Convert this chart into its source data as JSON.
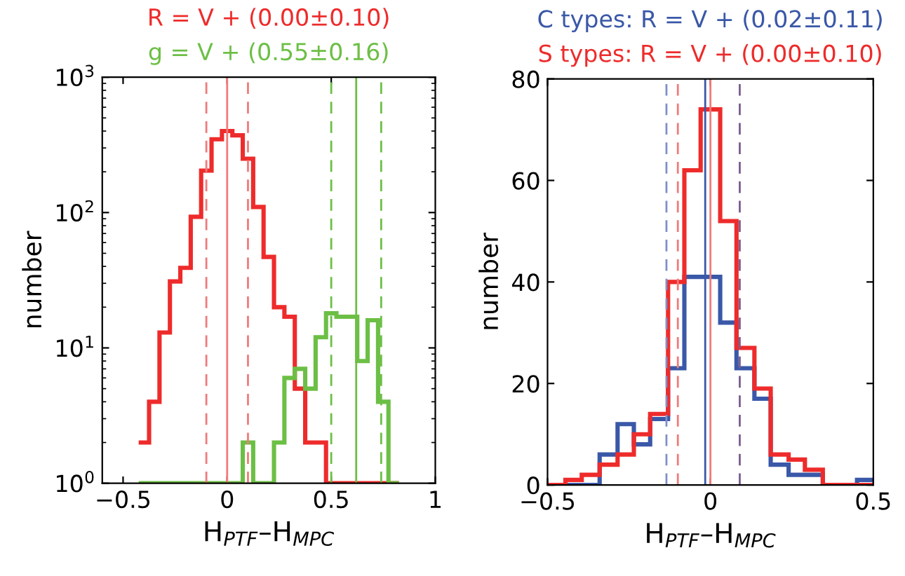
{
  "chart_data": [
    {
      "type": "histogram",
      "xlabel": "H$_{PTF}$–H$_{MPC}$",
      "ylabel": "number",
      "log": "y",
      "xlim": [
        -0.6,
        1
      ],
      "xticks": [
        {
          "value": -0.5,
          "label": "−0.5"
        },
        0,
        0.5,
        1
      ],
      "ylim": [
        1,
        1000
      ],
      "yticks": [
        {
          "value": 1,
          "label": "10$^{0}$"
        },
        {
          "value": 10,
          "label": "10$^{1}$"
        },
        {
          "value": 100,
          "label": "10$^{2}$"
        },
        {
          "value": 1000,
          "label": "10$^{3}$"
        }
      ],
      "bins": [
        -0.425,
        -0.375,
        -0.325,
        -0.275,
        -0.225,
        -0.175,
        -0.125,
        -0.075,
        -0.025,
        0.025,
        0.075,
        0.125,
        0.175,
        0.225,
        0.275,
        0.325,
        0.375,
        0.425,
        0.475,
        0.525,
        0.575,
        0.625,
        0.675,
        0.725,
        0.775,
        0.825
      ],
      "series": [
        {
          "name": "R = V + (0.00±0.10)",
          "color": "#ee2b2b",
          "values": [
            2,
            4,
            13,
            31,
            39,
            93,
            204,
            348,
            400,
            372,
            250,
            110,
            47,
            20,
            17,
            5,
            2,
            2,
            null,
            null,
            null,
            null,
            null,
            null,
            null
          ]
        },
        {
          "name": "g = V + (0.55±0.16)",
          "color": "#6cbf45",
          "values": [
            null,
            null,
            null,
            null,
            null,
            null,
            null,
            null,
            null,
            null,
            2,
            null,
            null,
            2,
            6,
            7,
            5,
            12,
            18,
            17,
            17,
            8,
            16,
            4,
            1
          ]
        }
      ],
      "ref_lines": [
        {
          "axis": "x",
          "value": 0,
          "color": "#f07a7a",
          "line_style": "solid"
        },
        {
          "axis": "x",
          "value": -0.1,
          "color": "#f07a7a",
          "line_style": "dashed"
        },
        {
          "axis": "x",
          "value": 0.1,
          "color": "#f07a7a",
          "line_style": "dashed"
        },
        {
          "axis": "x",
          "value": 0.62,
          "color": "#6cbf45",
          "line_style": "solid"
        },
        {
          "axis": "x",
          "value": 0.5,
          "color": "#6cbf45",
          "line_style": "dashed"
        },
        {
          "axis": "x",
          "value": 0.74,
          "color": "#6cbf45",
          "line_style": "dashed"
        }
      ]
    },
    {
      "type": "histogram",
      "xlabel": "H$_{PTF}$–H$_{MPC}$",
      "ylabel": "number",
      "xlim": [
        -0.5,
        0.5
      ],
      "xticks": [
        {
          "value": -0.5,
          "label": "−0.5"
        },
        0,
        0.5
      ],
      "ylim": [
        0,
        80
      ],
      "yticks": [
        0,
        20,
        40,
        60,
        80
      ],
      "bins": [
        -0.5,
        -0.445,
        -0.395,
        -0.34,
        -0.285,
        -0.235,
        -0.185,
        -0.13,
        -0.08,
        -0.03,
        0.03,
        0.08,
        0.135,
        0.185,
        0.24,
        0.29,
        0.345,
        0.395,
        0.45,
        0.5
      ],
      "series": [
        {
          "name": "C types: R = V + (0.02±0.11)",
          "color": "#3a58a8",
          "values": [
            0,
            0,
            0,
            6,
            12,
            8,
            13,
            23,
            41,
            41,
            32,
            23,
            17,
            4,
            2,
            2,
            0,
            0,
            1
          ]
        },
        {
          "name": "S types: R = V + (0.00±0.10)",
          "color": "#ee2b2b",
          "values": [
            0,
            1,
            2,
            4,
            6,
            10,
            14,
            40,
            62,
            74,
            52,
            27,
            19,
            6,
            5,
            3,
            0,
            0,
            0
          ]
        }
      ],
      "ref_lines": [
        {
          "axis": "x",
          "value": -0.016,
          "color": "#3a58a8",
          "line_style": "solid"
        },
        {
          "axis": "x",
          "value": 0.0,
          "color": "#f07a7a",
          "line_style": "solid"
        },
        {
          "axis": "x",
          "value": -0.135,
          "color": "#7f90c8",
          "line_style": "dashed"
        },
        {
          "axis": "x",
          "value": -0.1,
          "color": "#f07a7a",
          "line_style": "dashed"
        },
        {
          "axis": "x",
          "value": 0.09,
          "color": "#7a5a90",
          "line_style": "dashed"
        }
      ]
    }
  ]
}
